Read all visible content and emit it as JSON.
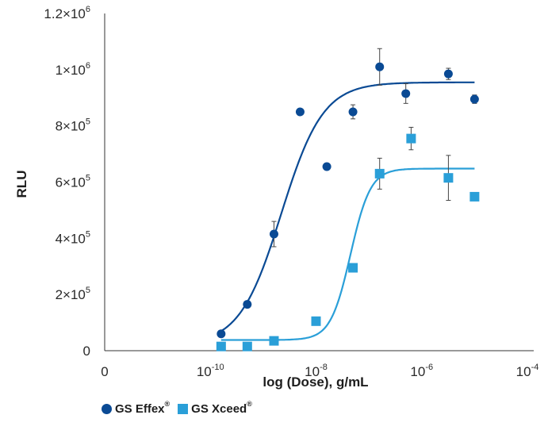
{
  "chart_data": {
    "type": "scatter",
    "xlabel": "log (Dose), g/mL",
    "ylabel": "RLU",
    "x_scale": "log",
    "xlim": [
      1e-12,
      0.0001
    ],
    "ylim": [
      0,
      1200000
    ],
    "x_ticks": [
      {
        "value": 1e-12,
        "base": "0",
        "exp": ""
      },
      {
        "value": 1e-10,
        "base": "10",
        "exp": "-10"
      },
      {
        "value": 1e-08,
        "base": "10",
        "exp": "-8"
      },
      {
        "value": 1e-06,
        "base": "10",
        "exp": "-6"
      },
      {
        "value": 0.0001,
        "base": "10",
        "exp": "-4"
      }
    ],
    "y_ticks": [
      {
        "value": 0,
        "base": "0",
        "exp": ""
      },
      {
        "value": 200000,
        "base": "2×10",
        "exp": "5"
      },
      {
        "value": 400000,
        "base": "4×10",
        "exp": "5"
      },
      {
        "value": 600000,
        "base": "6×10",
        "exp": "5"
      },
      {
        "value": 800000,
        "base": "8×10",
        "exp": "5"
      },
      {
        "value": 1000000,
        "base": "1×10",
        "exp": "6"
      },
      {
        "value": 1200000,
        "base": "1.2×10",
        "exp": "6"
      }
    ],
    "series": [
      {
        "name": "GS Effex",
        "marker": "circle",
        "color": "#0a4a94",
        "points": [
          {
            "x": 1.6e-10,
            "y": 60000,
            "err": 0
          },
          {
            "x": 5e-10,
            "y": 165000,
            "err": 0
          },
          {
            "x": 1.6e-09,
            "y": 415000,
            "err": 45000
          },
          {
            "x": 5e-09,
            "y": 850000,
            "err": 0
          },
          {
            "x": 1.6e-08,
            "y": 655000,
            "err": 0
          },
          {
            "x": 5e-08,
            "y": 850000,
            "err": 25000
          },
          {
            "x": 1.6e-07,
            "y": 1010000,
            "err": 65000
          },
          {
            "x": 5e-07,
            "y": 915000,
            "err": 35000
          },
          {
            "x": 3.2e-06,
            "y": 985000,
            "err": 20000
          },
          {
            "x": 1e-05,
            "y": 895000,
            "err": 15000
          }
        ],
        "fit": {
          "bottom": 20000,
          "top": 955000,
          "ec50": 2.2e-09,
          "hill": 1.1,
          "x_from": 1.6e-10,
          "x_to": 1e-05
        }
      },
      {
        "name": "GS Xceed",
        "marker": "square",
        "color": "#2a9fd8",
        "points": [
          {
            "x": 1.6e-10,
            "y": 15000,
            "err": 0
          },
          {
            "x": 5e-10,
            "y": 15000,
            "err": 0
          },
          {
            "x": 1.6e-09,
            "y": 35000,
            "err": 0
          },
          {
            "x": 1e-08,
            "y": 105000,
            "err": 0
          },
          {
            "x": 5e-08,
            "y": 295000,
            "err": 0
          },
          {
            "x": 1.6e-07,
            "y": 630000,
            "err": 55000
          },
          {
            "x": 6.3e-07,
            "y": 755000,
            "err": 40000
          },
          {
            "x": 3.2e-06,
            "y": 615000,
            "err": 80000
          },
          {
            "x": 1e-05,
            "y": 548000,
            "err": 5000
          }
        ],
        "fit": {
          "bottom": 38000,
          "top": 648000,
          "ec50": 4.5e-08,
          "hill": 2.3,
          "x_from": 1.6e-10,
          "x_to": 1e-05
        }
      }
    ],
    "legend": {
      "position": "bottom-left",
      "items": [
        {
          "label": "GS Effex",
          "mark": "®"
        },
        {
          "label": "GS Xceed",
          "mark": "®"
        }
      ]
    }
  }
}
